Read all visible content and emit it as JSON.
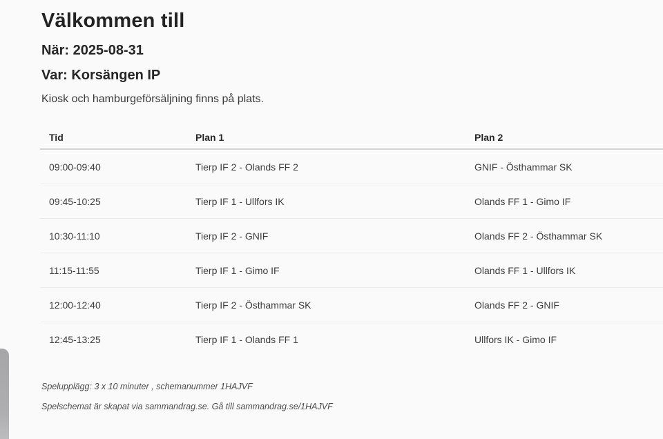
{
  "page": {
    "title": "Välkommen till",
    "when": "När: 2025-08-31",
    "where": "Var: Korsängen IP",
    "info": "Kiosk och hamburgeförsäljning finns på plats."
  },
  "schedule": {
    "columns": [
      "Tid",
      "Plan 1",
      "Plan 2"
    ],
    "rows": [
      {
        "tid": "09:00-09:40",
        "plan1": "Tierp IF 2 - Olands FF 2",
        "plan2": "GNIF - Östhammar SK"
      },
      {
        "tid": "09:45-10:25",
        "plan1": "Tierp IF 1 - Ullfors IK",
        "plan2": "Olands FF 1 - Gimo IF"
      },
      {
        "tid": "10:30-11:10",
        "plan1": "Tierp IF 2 - GNIF",
        "plan2": "Olands FF 2 - Östhammar SK"
      },
      {
        "tid": "11:15-11:55",
        "plan1": "Tierp IF 1 - Gimo IF",
        "plan2": "Olands FF 1 - Ullfors IK"
      },
      {
        "tid": "12:00-12:40",
        "plan1": "Tierp IF 2 - Östhammar SK",
        "plan2": "Olands FF 2 - GNIF"
      },
      {
        "tid": "12:45-13:25",
        "plan1": "Tierp IF 1 - Olands FF 1",
        "plan2": "Ullfors IK - Gimo IF"
      }
    ]
  },
  "footer": {
    "line1": "Spelupplägg: 3 x 10 minuter , schemanummer 1HAJVF",
    "line2": "Spelschemat är skapat via sammandrag.se. Gå till sammandrag.se/1HAJVF"
  },
  "colors": {
    "background": "#fbfafa",
    "heading_text": "#222222",
    "body_text": "#3d3d3d",
    "header_rule": "#d2d2d7",
    "row_rule": "#e9e9ee",
    "handle_gray": "#a6a6a8"
  }
}
